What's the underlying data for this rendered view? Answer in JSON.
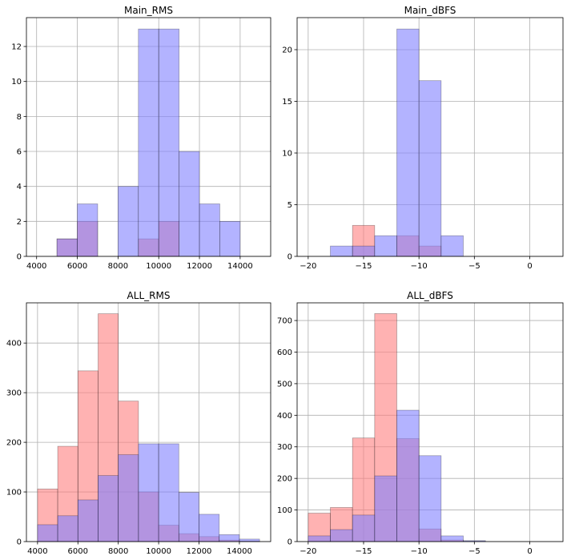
{
  "colors": {
    "red_series": "#ff7f7f",
    "blue_series": "#8080ff",
    "grid": "#b0b0b0",
    "axes": "#000000"
  },
  "chart_data": [
    {
      "type": "bar",
      "subtype": "overlaid-histogram",
      "title": "Main_RMS",
      "grid": true,
      "xlim": [
        3500,
        15500
      ],
      "ylim": [
        0,
        13.65
      ],
      "xticks": [
        4000,
        6000,
        8000,
        10000,
        12000,
        14000
      ],
      "yticks": [
        0,
        2,
        4,
        6,
        8,
        10,
        12
      ],
      "series": [
        {
          "color": "#ff7f7f",
          "bins": [
            [
              5000,
              6000,
              1
            ],
            [
              6000,
              7000,
              2
            ],
            [
              9000,
              10000,
              1
            ],
            [
              10000,
              11000,
              2
            ]
          ]
        },
        {
          "color": "#8080ff",
          "bins": [
            [
              5000,
              6000,
              1
            ],
            [
              6000,
              7000,
              3
            ],
            [
              8000,
              9000,
              4
            ],
            [
              9000,
              10000,
              13
            ],
            [
              10000,
              11000,
              13
            ],
            [
              11000,
              12000,
              6
            ],
            [
              12000,
              13000,
              3
            ],
            [
              13000,
              14000,
              2
            ]
          ]
        }
      ]
    },
    {
      "type": "bar",
      "subtype": "overlaid-histogram",
      "title": "Main_dBFS",
      "grid": true,
      "xlim": [
        -21,
        3
      ],
      "ylim": [
        0,
        23.1
      ],
      "xticks": [
        -20,
        -15,
        -10,
        -5,
        0
      ],
      "yticks": [
        0,
        5,
        10,
        15,
        20
      ],
      "series": [
        {
          "color": "#ff7f7f",
          "bins": [
            [
              -16,
              -14,
              3
            ],
            [
              -12,
              -10,
              2
            ],
            [
              -10,
              -8,
              1
            ]
          ]
        },
        {
          "color": "#8080ff",
          "bins": [
            [
              -18,
              -16,
              1
            ],
            [
              -16,
              -14,
              1
            ],
            [
              -14,
              -12,
              2
            ],
            [
              -12,
              -10,
              22
            ],
            [
              -10,
              -8,
              17
            ],
            [
              -8,
              -6,
              2
            ]
          ]
        }
      ]
    },
    {
      "type": "bar",
      "subtype": "overlaid-histogram",
      "title": "ALL_RMS",
      "grid": true,
      "xlim": [
        3450,
        15550
      ],
      "ylim": [
        0,
        481
      ],
      "xticks": [
        4000,
        6000,
        8000,
        10000,
        12000,
        14000
      ],
      "yticks": [
        0,
        100,
        200,
        300,
        400
      ],
      "series": [
        {
          "color": "#ff7f7f",
          "bins": [
            [
              4000,
              5000,
              106
            ],
            [
              5000,
              6000,
              192
            ],
            [
              6000,
              7000,
              344
            ],
            [
              7000,
              8000,
              459
            ],
            [
              8000,
              9000,
              283
            ],
            [
              9000,
              10000,
              100
            ],
            [
              10000,
              11000,
              33
            ],
            [
              11000,
              12000,
              16
            ],
            [
              12000,
              13000,
              10
            ],
            [
              13000,
              14000,
              3
            ],
            [
              14000,
              15000,
              1
            ]
          ]
        },
        {
          "color": "#8080ff",
          "bins": [
            [
              4000,
              5000,
              34
            ],
            [
              5000,
              6000,
              52
            ],
            [
              6000,
              7000,
              84
            ],
            [
              7000,
              8000,
              133
            ],
            [
              8000,
              9000,
              175
            ],
            [
              9000,
              10000,
              197
            ],
            [
              10000,
              11000,
              197
            ],
            [
              11000,
              12000,
              99
            ],
            [
              12000,
              13000,
              55
            ],
            [
              13000,
              14000,
              14
            ],
            [
              14000,
              15000,
              5
            ]
          ]
        }
      ]
    },
    {
      "type": "bar",
      "subtype": "overlaid-histogram",
      "title": "ALL_dBFS",
      "grid": true,
      "xlim": [
        -21,
        3
      ],
      "ylim": [
        0,
        756
      ],
      "xticks": [
        -20,
        -15,
        -10,
        -5,
        0
      ],
      "yticks": [
        0,
        100,
        200,
        300,
        400,
        500,
        600,
        700
      ],
      "series": [
        {
          "color": "#ff7f7f",
          "bins": [
            [
              -20,
              -18,
              90
            ],
            [
              -18,
              -16,
              108
            ],
            [
              -16,
              -14,
              328
            ],
            [
              -14,
              -12,
              722
            ],
            [
              -12,
              -10,
              326
            ],
            [
              -10,
              -8,
              40
            ],
            [
              -8,
              -6,
              5
            ],
            [
              -6,
              -4,
              1
            ]
          ]
        },
        {
          "color": "#8080ff",
          "bins": [
            [
              -20,
              -18,
              18
            ],
            [
              -18,
              -16,
              38
            ],
            [
              -16,
              -14,
              84
            ],
            [
              -14,
              -12,
              208
            ],
            [
              -12,
              -10,
              416
            ],
            [
              -10,
              -8,
              272
            ],
            [
              -8,
              -6,
              18
            ],
            [
              -6,
              -4,
              3
            ]
          ]
        }
      ]
    }
  ]
}
